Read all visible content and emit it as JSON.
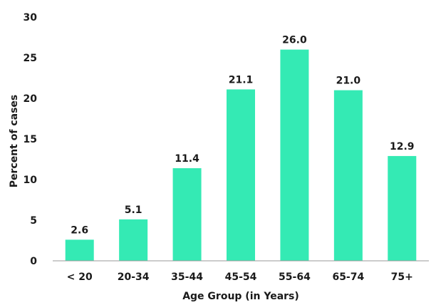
{
  "chart_data": {
    "type": "bar",
    "categories": [
      "< 20",
      "20-34",
      "35-44",
      "45-54",
      "55-64",
      "65-74",
      "75+"
    ],
    "values": [
      2.6,
      5.1,
      11.4,
      21.1,
      26.0,
      21.0,
      12.9
    ],
    "value_labels": [
      "2.6",
      "5.1",
      "11.4",
      "21.1",
      "26.0",
      "21.0",
      "12.9"
    ],
    "title": "",
    "xlabel": "Age Group (in Years)",
    "ylabel": "Percent of cases",
    "ylim": [
      0,
      30
    ],
    "yticks": [
      0,
      5,
      10,
      15,
      20,
      25,
      30
    ],
    "ytick_labels": [
      "0",
      "5",
      "10",
      "15",
      "20",
      "25",
      "30"
    ],
    "grid": false,
    "legend": "none",
    "bar_color": "#34eab4",
    "axis_color": "#999999",
    "text_color": "#1a1a1a"
  }
}
